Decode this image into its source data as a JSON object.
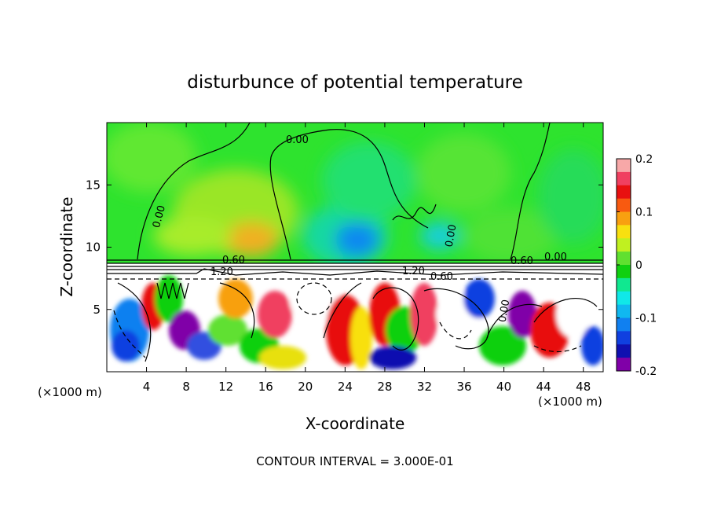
{
  "chart_data": {
    "type": "heatmap",
    "title": "disturbunce of potential temperature",
    "xlabel": "X-coordinate",
    "ylabel": "Z-coordinate",
    "x_unit": "(×1000 m)",
    "z_unit": "(×1000 m)",
    "xlim": [
      0,
      50
    ],
    "ylim": [
      0,
      20
    ],
    "x_ticks": [
      4,
      8,
      12,
      16,
      20,
      24,
      28,
      32,
      36,
      40,
      44,
      48
    ],
    "y_ticks": [
      5,
      10,
      15
    ],
    "colorbar": {
      "range": [
        -0.2,
        0.2
      ],
      "tick_labels": [
        "0.2",
        "0.1",
        "0",
        "-0.1",
        "-0.2"
      ],
      "tick_values": [
        0.2,
        0.1,
        0,
        -0.1,
        -0.2
      ],
      "colors": [
        "#f7a8a8",
        "#f04060",
        "#e81010",
        "#f85a10",
        "#f8a010",
        "#f8e010",
        "#c0f020",
        "#60e030",
        "#10d010",
        "#10e890",
        "#10e8e8",
        "#10b8f0",
        "#1080f0",
        "#1040e0",
        "#1010b0",
        "#8000a8"
      ]
    },
    "contour_labels": [
      "0.00",
      "0.00",
      "0.00",
      "0.00",
      "0.00",
      "0.60",
      "0.60",
      "1.20",
      "1.20",
      "0.60"
    ],
    "footer": "CONTOUR INTERVAL = 3.000E-01"
  }
}
